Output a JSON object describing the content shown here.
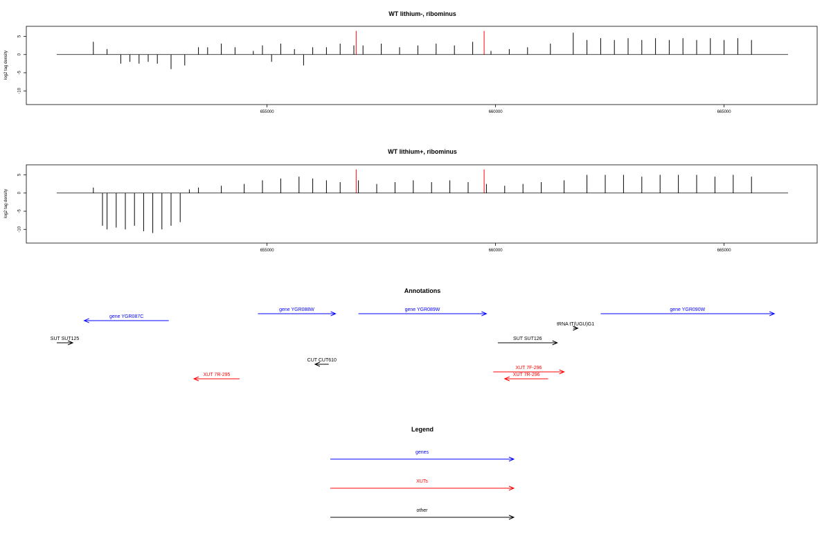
{
  "chart_data": [
    {
      "type": "bar",
      "title": "WT lithium-, ribominus",
      "ylabel": "log2 tag density",
      "ylim": [
        -13,
        7
      ],
      "yticks": [
        5,
        0,
        -5,
        -10
      ],
      "xlim": [
        650400,
        666400
      ],
      "xticks": [
        655000,
        660000,
        665000
      ],
      "x": [
        651200,
        651500,
        651800,
        652000,
        652200,
        652400,
        652600,
        652900,
        653200,
        653500,
        653700,
        654000,
        654300,
        654700,
        654900,
        655100,
        655300,
        655600,
        655800,
        656000,
        656300,
        656600,
        656900,
        657100,
        657500,
        657900,
        658300,
        658700,
        659100,
        659500,
        659900,
        660300,
        660700,
        661200,
        661700,
        662000,
        662300,
        662600,
        662900,
        663200,
        663500,
        663800,
        664100,
        664400,
        664700,
        665000,
        665300,
        665600
      ],
      "values": [
        3.5,
        1.5,
        -2.5,
        -2.0,
        -2.5,
        -2.0,
        -2.5,
        -4.0,
        -3.0,
        2.0,
        2.0,
        3.0,
        2.0,
        1.0,
        2.5,
        -2.0,
        3.0,
        1.5,
        -3.0,
        2.0,
        2.0,
        3.0,
        2.5,
        2.5,
        3.0,
        2.0,
        2.5,
        3.0,
        2.5,
        3.5,
        1.0,
        1.5,
        2.0,
        3.0,
        6.0,
        4.0,
        4.5,
        4.0,
        4.5,
        4.0,
        4.5,
        4.0,
        4.5,
        4.0,
        4.5,
        4.0,
        4.5,
        4.0
      ],
      "highlights": [
        {
          "x": 656950,
          "value": 6.5
        },
        {
          "x": 659750,
          "value": 6.5
        }
      ],
      "bar_color": "#000000",
      "highlight_color": "#ff0000"
    },
    {
      "type": "bar",
      "title": "WT lithium+, ribominus",
      "ylabel": "log2 tag density",
      "ylim": [
        -13,
        7
      ],
      "yticks": [
        5,
        0,
        -5,
        -10
      ],
      "xlim": [
        650400,
        666400
      ],
      "xticks": [
        655000,
        660000,
        665000
      ],
      "x": [
        651200,
        651400,
        651500,
        651700,
        651900,
        652100,
        652300,
        652500,
        652700,
        652900,
        653100,
        653300,
        653500,
        654000,
        654500,
        654900,
        655300,
        655700,
        656000,
        656300,
        656600,
        657000,
        657400,
        657800,
        658200,
        658600,
        659000,
        659400,
        659800,
        660200,
        660600,
        661000,
        661500,
        662000,
        662400,
        662800,
        663200,
        663600,
        664000,
        664400,
        664800,
        665200,
        665600
      ],
      "values": [
        1.5,
        -9.0,
        -10.0,
        -9.5,
        -10.0,
        -9.0,
        -10.5,
        -11.0,
        -10.0,
        -9.0,
        -8.0,
        1.0,
        1.5,
        2.0,
        2.5,
        3.5,
        4.0,
        4.5,
        4.0,
        3.5,
        3.0,
        3.5,
        2.5,
        3.0,
        3.5,
        3.0,
        3.5,
        3.0,
        2.5,
        2.0,
        2.5,
        3.0,
        3.5,
        5.0,
        5.0,
        5.0,
        4.5,
        5.0,
        5.0,
        5.0,
        4.5,
        5.0,
        4.5
      ],
      "highlights": [
        {
          "x": 656950,
          "value": 6.5
        },
        {
          "x": 659750,
          "value": 6.5
        }
      ],
      "bar_color": "#000000",
      "highlight_color": "#ff0000"
    }
  ],
  "annotations": {
    "title": "Annotations",
    "items": [
      {
        "label": "gene YGR087C",
        "start": 652850,
        "end": 651000,
        "color": "#0000ff",
        "level": 2
      },
      {
        "label": "gene YGR088W",
        "start": 654800,
        "end": 656500,
        "color": "#0000ff",
        "level": 1
      },
      {
        "label": "gene YGR089W",
        "start": 657000,
        "end": 659800,
        "color": "#0000ff",
        "level": 1
      },
      {
        "label": "gene YGR090W",
        "start": 662300,
        "end": 666100,
        "color": "#0000ff",
        "level": 1
      },
      {
        "label": "tRNA tT(UGU)G1",
        "start": 661700,
        "end": 661800,
        "color": "#000000",
        "level": 3
      },
      {
        "label": "SUT SUT125",
        "start": 650400,
        "end": 650750,
        "color": "#000000",
        "level": 4
      },
      {
        "label": "SUT SUT126",
        "start": 660050,
        "end": 661350,
        "color": "#000000",
        "level": 4
      },
      {
        "label": "CUT CUT610",
        "start": 656350,
        "end": 656050,
        "color": "#000000",
        "level": 5
      },
      {
        "label": "XUT 7F-296",
        "start": 659950,
        "end": 661500,
        "color": "#ff0000",
        "level": 6
      },
      {
        "label": "XUT 7R-296",
        "start": 661150,
        "end": 660200,
        "color": "#ff0000",
        "level": 7
      },
      {
        "label": "XUT 7R-295",
        "start": 654400,
        "end": 653400,
        "color": "#ff0000",
        "level": 7
      }
    ]
  },
  "legend": {
    "title": "Legend",
    "items": [
      {
        "label": "genes",
        "color": "#0000ff"
      },
      {
        "label": "XUTs",
        "color": "#ff0000"
      },
      {
        "label": "other",
        "color": "#000000"
      }
    ]
  }
}
